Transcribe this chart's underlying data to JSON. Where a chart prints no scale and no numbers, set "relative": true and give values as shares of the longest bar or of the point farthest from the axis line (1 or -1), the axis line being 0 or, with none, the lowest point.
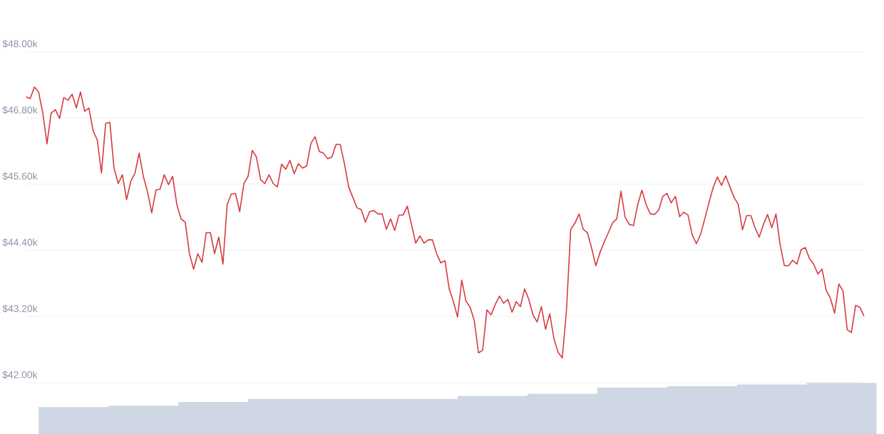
{
  "chart_data": [
    {
      "type": "line",
      "categories": [
        null,
        null,
        null,
        null,
        null,
        null,
        null,
        null,
        null,
        null,
        null,
        null,
        null,
        null,
        null,
        null,
        null,
        null,
        null,
        null,
        null,
        null,
        null,
        null,
        null,
        null,
        null,
        null,
        null,
        null,
        null,
        null,
        null,
        null,
        null,
        null,
        null,
        null,
        null,
        null,
        null,
        null,
        null,
        null,
        null,
        null,
        null,
        null,
        null,
        null,
        null,
        null,
        null,
        null,
        null,
        null,
        null,
        null,
        null,
        null,
        null,
        null,
        null,
        null,
        null,
        null,
        null,
        null,
        null,
        null,
        null,
        null,
        null,
        null,
        null,
        null,
        null,
        null,
        null,
        null,
        null,
        null,
        null,
        null,
        null,
        null,
        null,
        null,
        null,
        null,
        null,
        null,
        null,
        null,
        null,
        null,
        null,
        null,
        null,
        null,
        null,
        null,
        null,
        null,
        null,
        null,
        null,
        null,
        null,
        null,
        null,
        null,
        null,
        null,
        null,
        null,
        null,
        null,
        null,
        null,
        null,
        null,
        null,
        null,
        null,
        null,
        null,
        null,
        null,
        null,
        null,
        null,
        null,
        null,
        null,
        null,
        null,
        null,
        null,
        null,
        null,
        null,
        null,
        null,
        null,
        null,
        null,
        null,
        null,
        null,
        null,
        null,
        null,
        null,
        null,
        null,
        null,
        null,
        null,
        null,
        null,
        null,
        null,
        null,
        null,
        null,
        null,
        null,
        null,
        null,
        null,
        null,
        null,
        null,
        null,
        null,
        null,
        null,
        null,
        null,
        null,
        null,
        null,
        null,
        null,
        null,
        null,
        null,
        null,
        null,
        null,
        null,
        null,
        null,
        null,
        null,
        null,
        null,
        null,
        null,
        null
      ],
      "series": [
        {
          "color": "#d63a3f",
          "values": [
            47180,
            47150,
            47360,
            47270,
            46890,
            46330,
            46890,
            46950,
            46790,
            47170,
            47120,
            47230,
            46980,
            47270,
            46920,
            46980,
            46570,
            46400,
            45800,
            46700,
            46720,
            45890,
            45610,
            45770,
            45320,
            45650,
            45800,
            46160,
            45740,
            45460,
            45080,
            45490,
            45510,
            45770,
            45590,
            45740,
            45230,
            44970,
            44910,
            44340,
            44060,
            44340,
            44180,
            44720,
            44720,
            44340,
            44640,
            44150,
            45230,
            45420,
            45430,
            45100,
            45610,
            45740,
            46210,
            46090,
            45680,
            45610,
            45770,
            45610,
            45550,
            45960,
            45870,
            46030,
            45790,
            45970,
            45890,
            45930,
            46340,
            46460,
            46190,
            46160,
            46060,
            46090,
            46320,
            46320,
            45970,
            45550,
            45360,
            45170,
            45140,
            44910,
            45100,
            45120,
            45060,
            45060,
            44780,
            44970,
            44760,
            45040,
            45040,
            45200,
            44870,
            44530,
            44660,
            44530,
            44590,
            44590,
            44340,
            44170,
            44210,
            43700,
            43470,
            43190,
            43860,
            43480,
            43370,
            43120,
            42540,
            42590,
            43320,
            43230,
            43420,
            43570,
            43440,
            43510,
            43280,
            43470,
            43380,
            43700,
            43510,
            43230,
            43100,
            43380,
            42970,
            43250,
            42800,
            42550,
            42450,
            43320,
            44780,
            44890,
            45060,
            44780,
            44720,
            44440,
            44120,
            44360,
            44550,
            44720,
            44900,
            44970,
            45470,
            45000,
            44870,
            44850,
            45230,
            45490,
            45230,
            45060,
            45050,
            45130,
            45380,
            45430,
            45260,
            45380,
            45010,
            45090,
            45040,
            44680,
            44520,
            44690,
            44970,
            45260,
            45540,
            45730,
            45580,
            45750,
            45550,
            45360,
            45230,
            44770,
            45030,
            45030,
            44810,
            44640,
            44870,
            45050,
            44810,
            45060,
            44500,
            44120,
            44120,
            44220,
            44150,
            44410,
            44450,
            44250,
            44150,
            43970,
            44060,
            43670,
            43530,
            43260,
            43790,
            43660,
            42960,
            42910,
            43400,
            43370,
            43210
          ]
        }
      ],
      "ylim": [
        42000,
        48000
      ],
      "yticks": [
        {
          "value": 42000,
          "label": "$42.00k"
        },
        {
          "value": 43200,
          "label": "$43.20k"
        },
        {
          "value": 44400,
          "label": "$44.40k"
        },
        {
          "value": 45600,
          "label": "$45.60k"
        },
        {
          "value": 46800,
          "label": "$46.80k"
        },
        {
          "value": 48000,
          "label": "$48.00k"
        }
      ],
      "grid": "y",
      "tick_labels": "y"
    },
    {
      "type": "area",
      "relative": true,
      "tick_labels": false,
      "categories": [
        null,
        null,
        null,
        null,
        null,
        null,
        null,
        null,
        null,
        null,
        null,
        null,
        null
      ],
      "series": [
        {
          "color": "#cfd6e4",
          "values": [
            0.52,
            0.55,
            0.62,
            0.68,
            0.68,
            0.68,
            0.74,
            0.78,
            0.9,
            0.93,
            0.96,
            0.99,
            1
          ]
        }
      ]
    }
  ]
}
